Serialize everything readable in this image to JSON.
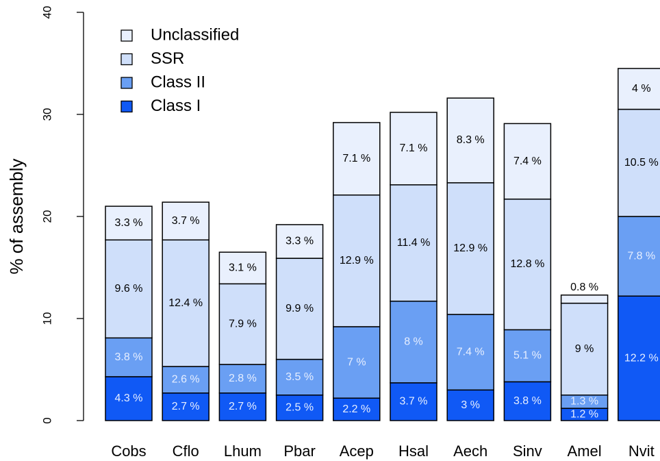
{
  "chart_data": {
    "type": "stacked_bar",
    "ylabel": "% of assembly",
    "categories": [
      "Cobs",
      "Cflo",
      "Lhum",
      "Pbar",
      "Acep",
      "Hsal",
      "Aech",
      "Sinv",
      "Amel",
      "Nvit"
    ],
    "series": [
      {
        "name": "Class I",
        "color": "#1059f5",
        "label_color": "#e6eeff",
        "values": [
          4.3,
          2.7,
          2.7,
          2.5,
          2.2,
          3.7,
          3,
          3.8,
          1.2,
          12.2
        ],
        "value_labels": [
          "4.3 %",
          "2.7 %",
          "2.7 %",
          "2.5 %",
          "2.2 %",
          "3.7 %",
          "3 %",
          "3.8 %",
          "1.2 %",
          "12.2 %"
        ]
      },
      {
        "name": "Class II",
        "color": "#6a9ff3",
        "label_color": "#e6eeff",
        "values": [
          3.8,
          2.6,
          2.8,
          3.5,
          7,
          8,
          7.4,
          5.1,
          1.3,
          7.8
        ],
        "value_labels": [
          "3.8 %",
          "2.6 %",
          "2.8 %",
          "3.5 %",
          "7 %",
          "8 %",
          "7.4 %",
          "5.1 %",
          "1.3 %",
          "7.8 %"
        ]
      },
      {
        "name": "SSR",
        "color": "#cfdffa",
        "label_color": "#000000",
        "values": [
          9.6,
          12.4,
          7.9,
          9.9,
          12.9,
          11.4,
          12.9,
          12.8,
          9,
          10.5
        ],
        "value_labels": [
          "9.6 %",
          "12.4 %",
          "7.9 %",
          "9.9 %",
          "12.9 %",
          "11.4 %",
          "12.9 %",
          "12.8 %",
          "9 %",
          "10.5 %"
        ]
      },
      {
        "name": "Unclassified",
        "color": "#e9f0fd",
        "label_color": "#000000",
        "values": [
          3.3,
          3.7,
          3.1,
          3.3,
          7.1,
          7.1,
          8.3,
          7.4,
          0.8,
          4
        ],
        "value_labels": [
          "3.3 %",
          "3.7 %",
          "3.1 %",
          "3.3 %",
          "7.1 %",
          "7.1 %",
          "8.3 %",
          "7.4 %",
          "0.8 %",
          "4 %"
        ]
      }
    ],
    "ylim": [
      0,
      40
    ],
    "yticks": [
      0,
      10,
      20,
      30,
      40
    ],
    "legend": "topleft"
  }
}
